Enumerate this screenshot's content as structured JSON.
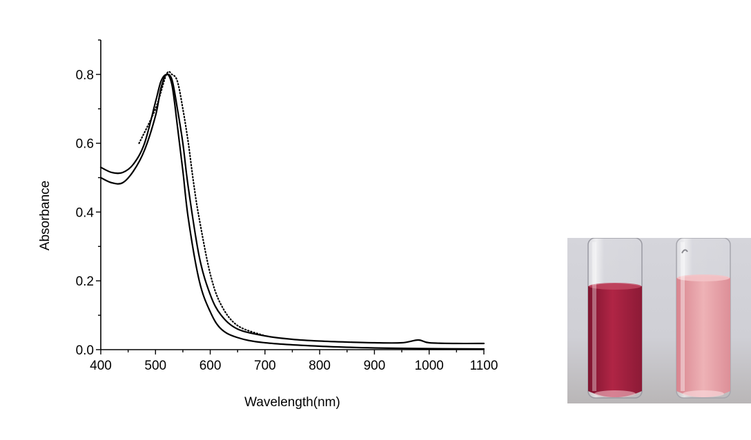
{
  "chart_data": {
    "type": "line",
    "title": "",
    "xlabel": "Wavelength(nm)",
    "ylabel": "Absorbance",
    "xlim": [
      400,
      1100
    ],
    "ylim": [
      0.0,
      0.9
    ],
    "x_ticks": [
      400,
      500,
      600,
      700,
      800,
      900,
      1000,
      1100
    ],
    "x_tick_labels": [
      "400",
      "500",
      "600",
      "700",
      "800",
      "900",
      "1000",
      "1100"
    ],
    "y_ticks": [
      0.0,
      0.2,
      0.4,
      0.6,
      0.8
    ],
    "y_tick_labels": [
      "0.0",
      "0.2",
      "0.4",
      "0.6",
      "0.8"
    ],
    "grid": false,
    "legend": "none",
    "series": [
      {
        "style": "solid",
        "x": [
          400,
          420,
          440,
          460,
          480,
          500,
          510,
          520,
          530,
          540,
          550,
          560,
          580,
          600,
          620,
          650,
          700,
          750,
          800,
          850,
          900,
          950,
          980,
          1000,
          1050,
          1100
        ],
        "y": [
          0.53,
          0.515,
          0.515,
          0.54,
          0.6,
          0.72,
          0.78,
          0.8,
          0.785,
          0.7,
          0.6,
          0.47,
          0.27,
          0.16,
          0.1,
          0.06,
          0.04,
          0.03,
          0.025,
          0.022,
          0.02,
          0.02,
          0.028,
          0.02,
          0.018,
          0.018
        ]
      },
      {
        "style": "solid",
        "x": [
          400,
          420,
          440,
          460,
          480,
          500,
          510,
          520,
          530,
          540,
          550,
          560,
          580,
          600,
          620,
          650,
          700,
          800,
          900,
          1000,
          1100
        ],
        "y": [
          0.5,
          0.485,
          0.485,
          0.52,
          0.58,
          0.68,
          0.76,
          0.8,
          0.77,
          0.65,
          0.52,
          0.38,
          0.2,
          0.11,
          0.06,
          0.035,
          0.02,
          0.01,
          0.005,
          0.003,
          0.002
        ]
      },
      {
        "style": "dotted",
        "x": [
          470,
          500,
          520,
          530,
          540,
          550,
          560,
          570,
          580,
          600,
          620,
          650,
          700
        ],
        "y": [
          0.6,
          0.7,
          0.8,
          0.8,
          0.78,
          0.7,
          0.6,
          0.48,
          0.38,
          0.22,
          0.13,
          0.07,
          0.04
        ]
      }
    ]
  },
  "photo": {
    "left_vial_color": "#a5203f",
    "right_vial_color": "#e8a1a8",
    "background_color": "#cfcfd5"
  }
}
